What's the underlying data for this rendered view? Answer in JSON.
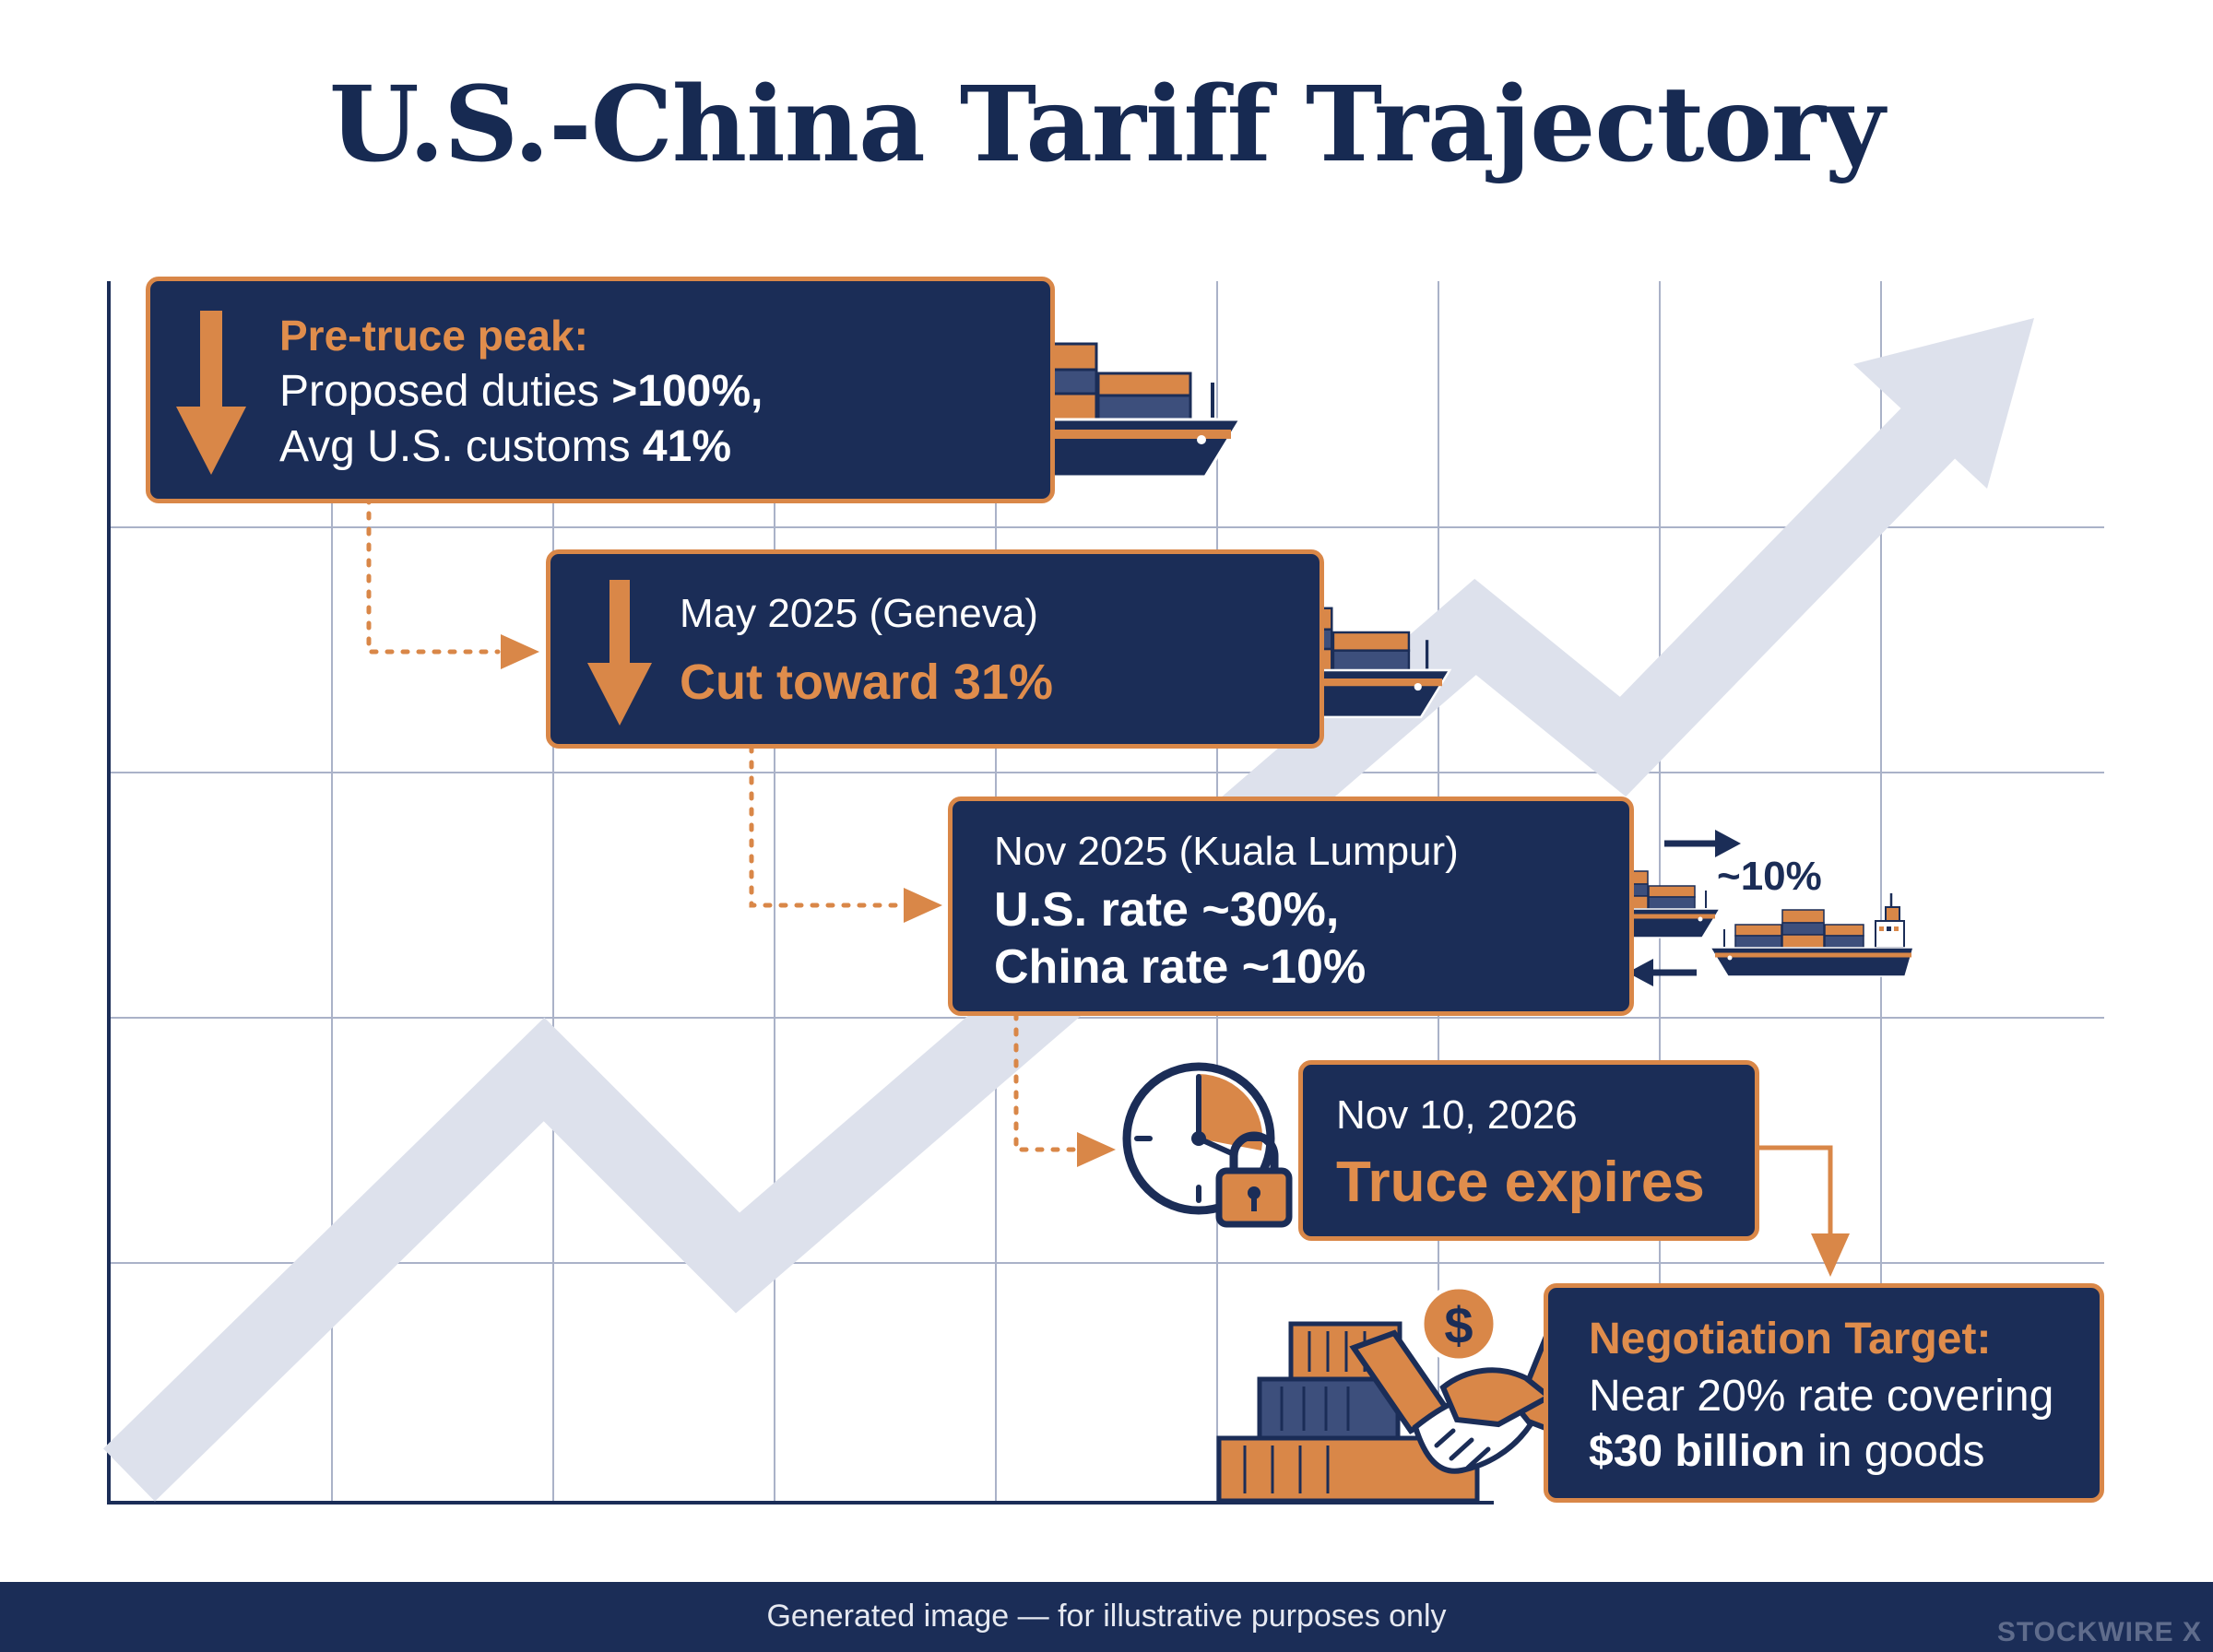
{
  "title": "U.S.-China Tariff Trajectory",
  "cards": {
    "peak": {
      "heading": "Pre-truce peak:",
      "line1_prefix": "Proposed duties ",
      "line1_value": ">100%,",
      "line2_prefix": "Avg U.S. customs ",
      "line2_value": "41%"
    },
    "geneva": {
      "date": "May 2025 (Geneva)",
      "headline": "Cut toward 31%"
    },
    "kuala_lumpur": {
      "date": "Nov 2025 (Kuala Lumpur)",
      "line1": "U.S. rate ~30%,",
      "line2": "China rate ~10%",
      "exchange_label": "~10%"
    },
    "expiry": {
      "date": "Nov 10, 2026",
      "headline": "Truce expires"
    },
    "target": {
      "heading": "Negotiation Target:",
      "line1": "Near 20% rate covering",
      "line2_value": "$30 billion",
      "line2_suffix": " in goods",
      "coin_symbol": "$"
    }
  },
  "footer": {
    "caption": "Generated image — for illustrative purposes only",
    "brand": "STOCKWIRE X"
  },
  "colors": {
    "navy": "#1b2d57",
    "orange": "#d98748",
    "grid": "#aab2c8",
    "trend_arrow": "#dde1ec"
  },
  "icons": [
    "down-arrow-icon",
    "cargo-ship-icon",
    "clock-icon",
    "padlock-icon",
    "handshake-icon",
    "dollar-coin-icon",
    "container-stack-icon"
  ]
}
